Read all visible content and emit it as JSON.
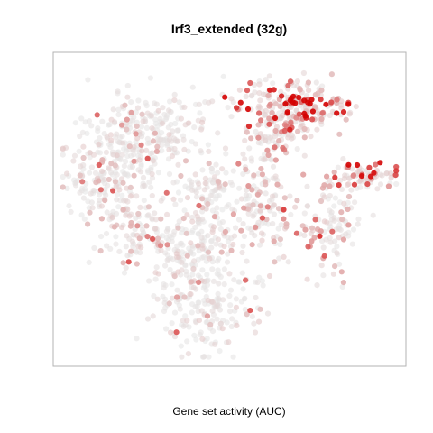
{
  "chart_data": {
    "type": "scatter",
    "title": "Irf3_extended (32g)",
    "xlabel": "Gene set activity (AUC)",
    "ylabel": "",
    "grid": false,
    "axes_ticks": false,
    "legend": "none",
    "color_scale": {
      "low": "#e6e6e6",
      "high": "#d40000",
      "value_range": [
        0,
        1
      ]
    },
    "xlim": [
      0,
      100
    ],
    "ylim": [
      0,
      100
    ],
    "clusters": [
      {
        "name": "",
        "cx": 18,
        "cy": 68,
        "sx": 9,
        "sy": 9,
        "n": 230,
        "mean_activity": 0.12
      },
      {
        "name": "",
        "cx": 30,
        "cy": 78,
        "sx": 7,
        "sy": 6,
        "n": 120,
        "mean_activity": 0.08
      },
      {
        "name": "",
        "cx": 14,
        "cy": 56,
        "sx": 6,
        "sy": 6,
        "n": 80,
        "mean_activity": 0.15
      },
      {
        "name": "",
        "cx": 60,
        "cy": 88,
        "sx": 7,
        "sy": 4,
        "n": 70,
        "mean_activity": 0.55
      },
      {
        "name": "",
        "cx": 72,
        "cy": 84,
        "sx": 6,
        "sy": 4,
        "n": 150,
        "mean_activity": 0.85
      },
      {
        "name": "",
        "cx": 64,
        "cy": 75,
        "sx": 5,
        "sy": 5,
        "n": 90,
        "mean_activity": 0.45
      },
      {
        "name": "",
        "cx": 90,
        "cy": 61,
        "sx": 5,
        "sy": 2,
        "n": 80,
        "mean_activity": 0.65
      },
      {
        "name": "",
        "cx": 80,
        "cy": 45,
        "sx": 4,
        "sy": 8,
        "n": 100,
        "mean_activity": 0.22
      },
      {
        "name": "",
        "cx": 44,
        "cy": 52,
        "sx": 4,
        "sy": 10,
        "n": 130,
        "mean_activity": 0.12
      },
      {
        "name": "",
        "cx": 59,
        "cy": 50,
        "sx": 6,
        "sy": 8,
        "n": 150,
        "mean_activity": 0.2
      },
      {
        "name": "",
        "cx": 43,
        "cy": 20,
        "sx": 8,
        "sy": 9,
        "n": 210,
        "mean_activity": 0.1
      },
      {
        "name": "",
        "cx": 24,
        "cy": 42,
        "sx": 7,
        "sy": 6,
        "n": 90,
        "mean_activity": 0.14
      },
      {
        "name": "",
        "cx": 36,
        "cy": 36,
        "sx": 5,
        "sy": 5,
        "n": 70,
        "mean_activity": 0.1
      }
    ]
  }
}
